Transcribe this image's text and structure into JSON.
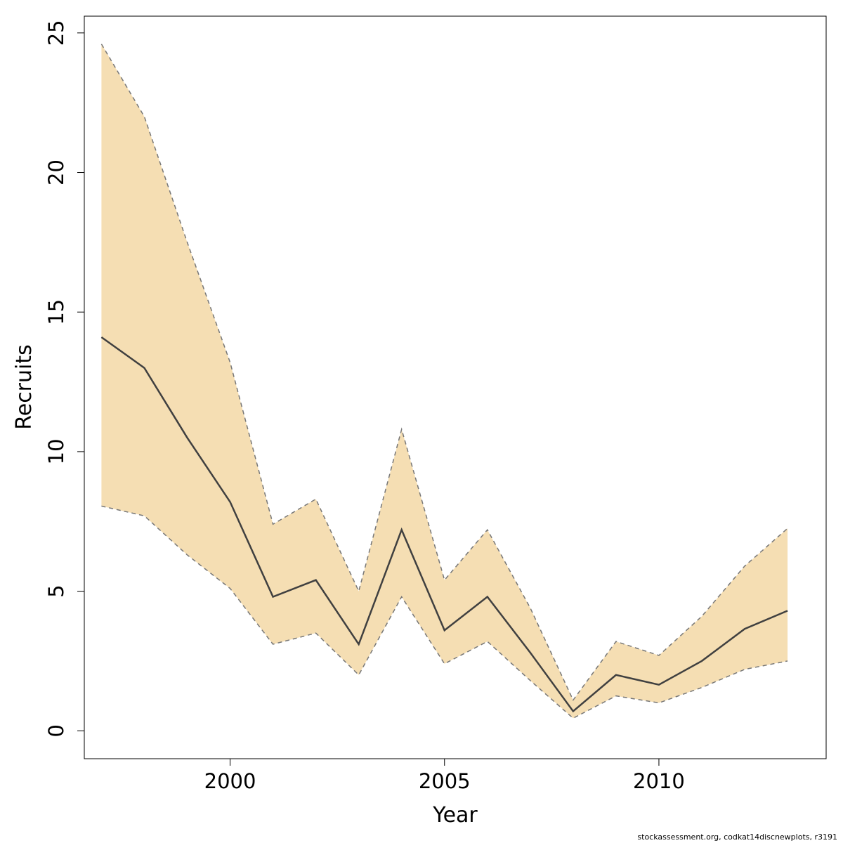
{
  "chart_data": {
    "type": "area",
    "title": "",
    "xlabel": "Year",
    "ylabel": "Recruits",
    "xlim": [
      1996.6,
      2013.9
    ],
    "ylim": [
      -1,
      25.6
    ],
    "xticks": [
      2000,
      2005,
      2010
    ],
    "yticks": [
      0,
      5,
      10,
      15,
      20,
      25
    ],
    "grid": false,
    "legend": "none",
    "x": [
      1997,
      1998,
      1999,
      2000,
      2001,
      2002,
      2003,
      2004,
      2005,
      2006,
      2007,
      2008,
      2009,
      2010,
      2011,
      2012,
      2013
    ],
    "series": [
      {
        "role": "estimate",
        "values": [
          14.1,
          13.0,
          10.5,
          8.2,
          4.8,
          5.4,
          3.1,
          7.2,
          3.6,
          4.8,
          2.8,
          0.7,
          2.0,
          1.65,
          2.5,
          3.65,
          4.3
        ]
      },
      {
        "role": "upper",
        "values": [
          24.6,
          22.0,
          17.5,
          13.2,
          7.4,
          8.3,
          5.0,
          10.8,
          5.4,
          7.2,
          4.4,
          1.1,
          3.2,
          2.7,
          4.1,
          5.9,
          7.25
        ]
      },
      {
        "role": "lower",
        "values": [
          8.05,
          7.7,
          6.3,
          5.1,
          3.1,
          3.5,
          2.0,
          4.8,
          2.4,
          3.2,
          1.8,
          0.45,
          1.25,
          1.0,
          1.55,
          2.2,
          2.5
        ]
      }
    ],
    "colors": {
      "band": "#f5deb3",
      "line": "#404040",
      "bounds": "#777777"
    }
  },
  "footer": "stockassessment.org, codkat14discnewplots, r3191"
}
